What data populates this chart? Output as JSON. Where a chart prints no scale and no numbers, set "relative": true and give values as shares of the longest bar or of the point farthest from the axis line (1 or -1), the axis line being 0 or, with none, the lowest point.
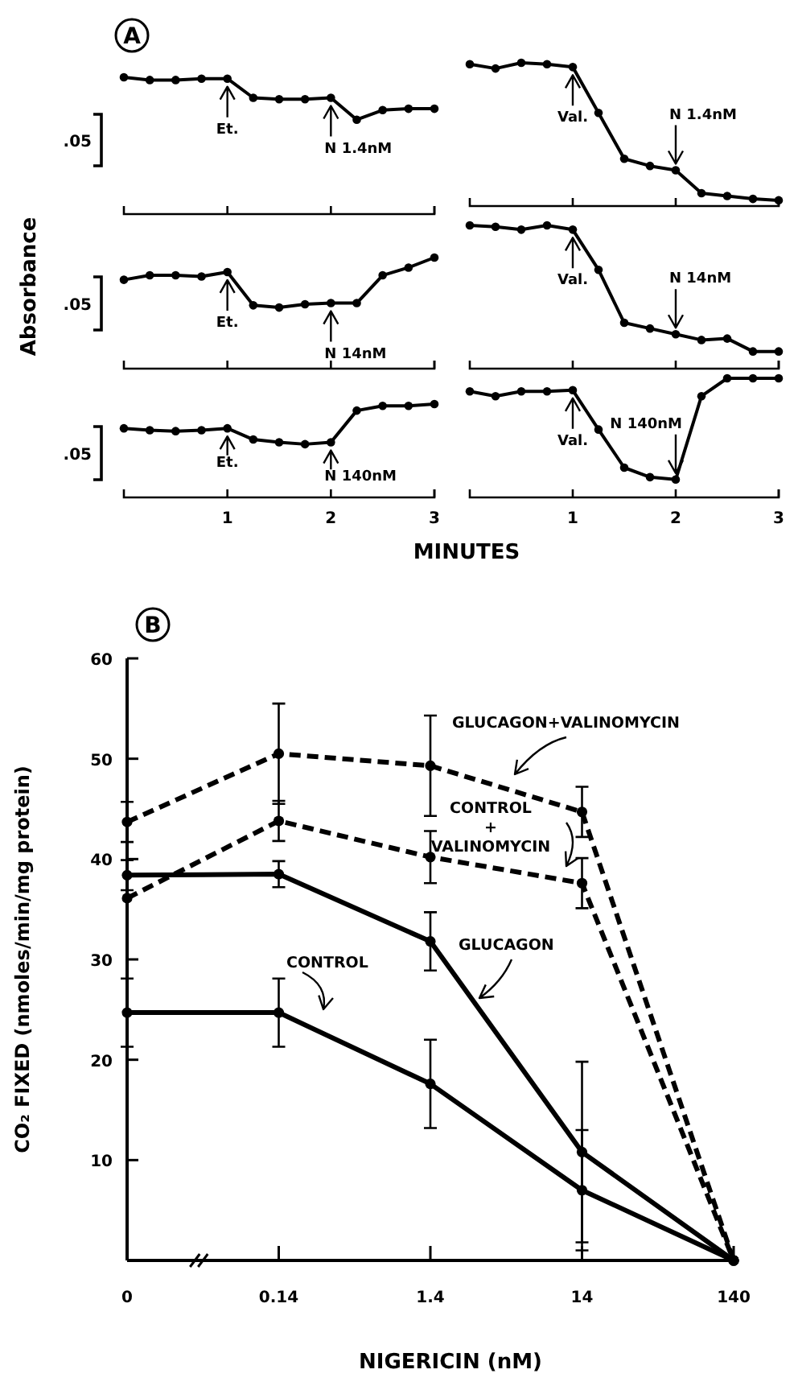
{
  "chart_data": [
    {
      "type": "line",
      "title": "A",
      "relative": true,
      "x": [
        0,
        0.25,
        0.5,
        0.75,
        1,
        1.25,
        1.5,
        1.75,
        2,
        2.25,
        2.5,
        2.75,
        3
      ],
      "values": [
        1,
        0.98,
        0.98,
        0.99,
        0.99,
        0.85,
        0.84,
        0.84,
        0.85,
        0.69,
        0.76,
        0.77,
        0.77
      ],
      "color": "#000000",
      "xlim": [
        0,
        3
      ],
      "xticks": [
        1,
        2,
        3
      ],
      "tick_labels": false,
      "marker": "circle",
      "line_style": "solid",
      "annotations": [
        ".05",
        "Et.",
        "N 1.4nM"
      ]
    },
    {
      "type": "line",
      "relative": true,
      "x": [
        0,
        0.25,
        0.5,
        0.75,
        1,
        1.25,
        1.5,
        1.75,
        2,
        2.25,
        2.5,
        2.75,
        3
      ],
      "values": [
        0.99,
        0.96,
        1,
        0.99,
        0.97,
        0.65,
        0.33,
        0.28,
        0.25,
        0.09,
        0.07,
        0.05,
        0.04
      ],
      "color": "#000000",
      "xlim": [
        0,
        3
      ],
      "xticks": [
        1,
        2,
        3
      ],
      "tick_labels": false,
      "marker": "circle",
      "line_style": "solid",
      "annotations": [
        "Val.",
        "N 1.4nM"
      ]
    },
    {
      "type": "line",
      "ylabel": "Absorbance",
      "relative": true,
      "x": [
        0,
        0.25,
        0.5,
        0.75,
        1,
        1.25,
        1.5,
        1.75,
        2,
        2.25,
        2.5,
        2.75,
        3
      ],
      "values": [
        0.8,
        0.84,
        0.84,
        0.83,
        0.87,
        0.57,
        0.55,
        0.58,
        0.59,
        0.59,
        0.84,
        0.91,
        1
      ],
      "color": "#000000",
      "xlim": [
        0,
        3
      ],
      "xticks": [
        1,
        2,
        3
      ],
      "tick_labels": false,
      "marker": "circle",
      "line_style": "solid",
      "annotations": [
        ".05",
        "Et.",
        "N 14nM"
      ]
    },
    {
      "type": "line",
      "relative": true,
      "x": [
        0,
        0.25,
        0.5,
        0.75,
        1,
        1.25,
        1.5,
        1.75,
        2,
        2.25,
        2.5,
        2.75,
        3
      ],
      "values": [
        1,
        0.99,
        0.97,
        1,
        0.97,
        0.69,
        0.32,
        0.28,
        0.24,
        0.2,
        0.21,
        0.12,
        0.12
      ],
      "color": "#000000",
      "xlim": [
        0,
        3
      ],
      "xticks": [
        1,
        2,
        3
      ],
      "tick_labels": false,
      "marker": "circle",
      "line_style": "solid",
      "annotations": [
        "Val.",
        "N 14nM"
      ]
    },
    {
      "type": "line",
      "xlabel": "MINUTES",
      "relative": true,
      "x": [
        0,
        0.25,
        0.5,
        0.75,
        1,
        1.25,
        1.5,
        1.75,
        2,
        2.25,
        2.5,
        2.75,
        3
      ],
      "values": [
        0.74,
        0.72,
        0.71,
        0.72,
        0.74,
        0.62,
        0.59,
        0.57,
        0.59,
        0.93,
        0.98,
        0.98,
        1
      ],
      "color": "#000000",
      "xlim": [
        0,
        3
      ],
      "xticks": [
        1,
        2,
        3
      ],
      "tick_labels": "x",
      "marker": "circle",
      "line_style": "solid",
      "annotations": [
        ".05",
        "Et.",
        "N 140nM"
      ]
    },
    {
      "type": "line",
      "relative": true,
      "x": [
        0,
        0.25,
        0.5,
        0.75,
        1,
        1.25,
        1.5,
        1.75,
        2,
        2.25,
        2.5,
        2.75,
        3
      ],
      "values": [
        0.89,
        0.85,
        0.89,
        0.89,
        0.9,
        0.57,
        0.25,
        0.17,
        0.15,
        0.85,
        1,
        1,
        1
      ],
      "color": "#000000",
      "xlim": [
        0,
        3
      ],
      "xticks": [
        1,
        2,
        3
      ],
      "tick_labels": "x",
      "marker": "circle",
      "line_style": "solid",
      "annotations": [
        "Val.",
        "N 140nM"
      ]
    },
    {
      "type": "line",
      "title": "B",
      "xlabel": "NIGERICIN (nM)",
      "ylabel": "CO₂ FIXED (nmoles/min/mg protein)",
      "categories": [
        "0",
        "0.14",
        "1.4",
        "14",
        "140"
      ],
      "ylim": [
        0,
        60
      ],
      "yticks": [
        10,
        20,
        30,
        40,
        50,
        60
      ],
      "marker": "circle",
      "series": [
        {
          "name": "GLUCAGON+VALINOMYCIN",
          "color": "#000000",
          "line_style": "dashed",
          "values": [
            43.7,
            50.5,
            49.3,
            44.7,
            0
          ],
          "errors": [
            2,
            5,
            5,
            2.5,
            null
          ]
        },
        {
          "name": "CONTROL + VALINOMYCIN",
          "color": "#000000",
          "line_style": "dashed",
          "values": [
            36.1,
            43.8,
            40.2,
            37.6,
            0
          ],
          "errors": [
            null,
            2,
            2.6,
            2.5,
            null
          ]
        },
        {
          "name": "GLUCAGON",
          "color": "#000000",
          "line_style": "solid",
          "values": [
            38.4,
            38.5,
            31.8,
            10.8,
            0
          ],
          "errors": [
            1.5,
            1.3,
            2.9,
            9,
            null
          ]
        },
        {
          "name": "CONTROL",
          "color": "#000000",
          "line_style": "solid",
          "values": [
            24.7,
            24.7,
            17.6,
            7,
            0
          ],
          "errors": [
            3.4,
            3.4,
            4.4,
            6,
            null
          ]
        }
      ]
    }
  ]
}
